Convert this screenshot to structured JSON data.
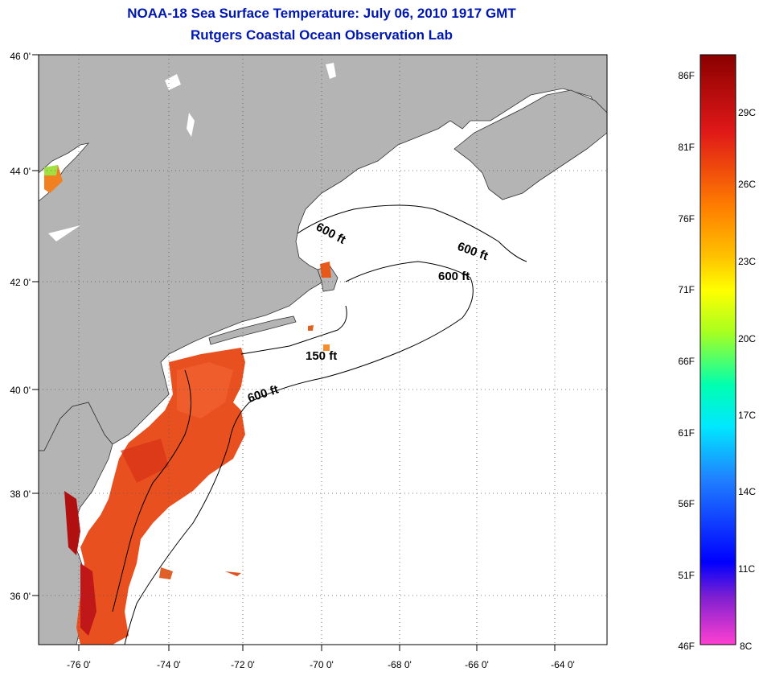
{
  "title": "NOAA-18 Sea Surface Temperature:  July 06, 2010 1917 GMT",
  "subtitle": "Rutgers Coastal Ocean Observation Lab",
  "map": {
    "lon_range": [
      -77,
      -63
    ],
    "lat_range": [
      35,
      46
    ],
    "lon_ticks": [
      "-76 0'",
      "-74 0'",
      "-72 0'",
      "-70 0'",
      "-68 0'",
      "-66 0'",
      "-64 0'"
    ],
    "lat_ticks": [
      "46 0'",
      "44 0'",
      "42 0'",
      "40 0'",
      "38 0'",
      "36 0'"
    ],
    "land_color": "#b4b4b4",
    "sea_color": "#ffffff",
    "contour_labels": [
      "600 ft",
      "600 ft",
      "600 ft",
      "150 ft",
      "600 ft"
    ]
  },
  "colorbar": {
    "fahrenheit": [
      "86F",
      "81F",
      "76F",
      "71F",
      "66F",
      "61F",
      "56F",
      "51F",
      "46F"
    ],
    "celsius": [
      "29C",
      "26C",
      "23C",
      "20C",
      "17C",
      "14C",
      "11C",
      "8C"
    ],
    "gradient": [
      "#8a0000",
      "#e01818",
      "#ff8000",
      "#ffd800",
      "#e8ff00",
      "#66ff33",
      "#00e8c0",
      "#0080ff",
      "#0000ff",
      "#8020d0",
      "#ff40d0"
    ]
  }
}
